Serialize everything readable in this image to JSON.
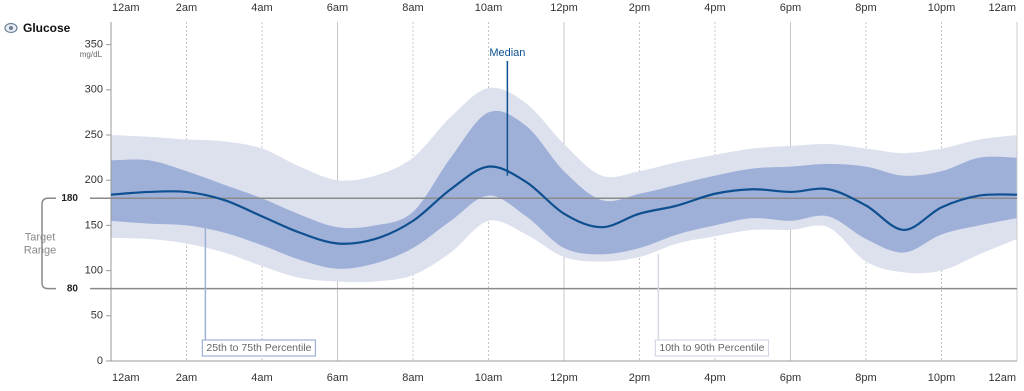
{
  "chart_data": {
    "type": "percentile-band",
    "title": "Glucose",
    "y_unit": "mg/dL",
    "x": [
      0,
      1,
      2,
      3,
      4,
      5,
      6,
      7,
      8,
      9,
      10,
      11,
      12,
      13,
      14,
      15,
      16,
      17,
      18,
      19,
      20,
      21,
      22,
      23,
      24
    ],
    "xlim": [
      0,
      24
    ],
    "xticks": [
      {
        "value": 0,
        "label": "12am"
      },
      {
        "value": 2,
        "label": "2am"
      },
      {
        "value": 4,
        "label": "4am"
      },
      {
        "value": 6,
        "label": "6am"
      },
      {
        "value": 8,
        "label": "8am"
      },
      {
        "value": 10,
        "label": "10am"
      },
      {
        "value": 12,
        "label": "12pm"
      },
      {
        "value": 14,
        "label": "2pm"
      },
      {
        "value": 16,
        "label": "4pm"
      },
      {
        "value": 18,
        "label": "6pm"
      },
      {
        "value": 20,
        "label": "8pm"
      },
      {
        "value": 22,
        "label": "10pm"
      },
      {
        "value": 24,
        "label": "12am"
      }
    ],
    "ylim": [
      0,
      375
    ],
    "yticks": [
      0,
      50,
      100,
      150,
      200,
      250,
      300,
      350
    ],
    "target_range": {
      "label": "Target Range",
      "low": 80,
      "high": 180,
      "color": "#8a8a8a"
    },
    "bands": [
      {
        "name": "10th to 90th Percentile",
        "color": "#dde1ee",
        "low": [
          136,
          135,
          130,
          120,
          105,
          92,
          88,
          88,
          95,
          120,
          155,
          140,
          115,
          110,
          115,
          130,
          138,
          145,
          145,
          148,
          110,
          98,
          100,
          118,
          135
        ],
        "high": [
          250,
          248,
          245,
          243,
          235,
          215,
          200,
          205,
          225,
          270,
          302,
          285,
          240,
          205,
          210,
          220,
          228,
          235,
          238,
          240,
          235,
          230,
          235,
          245,
          250
        ]
      },
      {
        "name": "25th to 75th Percentile",
        "color": "#9fb0d8",
        "low": [
          155,
          152,
          150,
          142,
          128,
          112,
          102,
          108,
          125,
          155,
          183,
          160,
          125,
          118,
          125,
          140,
          150,
          158,
          155,
          160,
          135,
          120,
          140,
          150,
          158
        ],
        "high": [
          222,
          222,
          210,
          195,
          180,
          162,
          148,
          150,
          165,
          225,
          275,
          260,
          210,
          178,
          185,
          195,
          205,
          213,
          215,
          218,
          215,
          205,
          210,
          225,
          225
        ]
      }
    ],
    "median": {
      "name": "Median",
      "color": "#0d4f8f",
      "values": [
        184,
        187,
        187,
        178,
        160,
        142,
        130,
        135,
        155,
        190,
        215,
        198,
        163,
        148,
        163,
        172,
        185,
        190,
        187,
        190,
        172,
        145,
        170,
        183,
        184
      ]
    }
  }
}
